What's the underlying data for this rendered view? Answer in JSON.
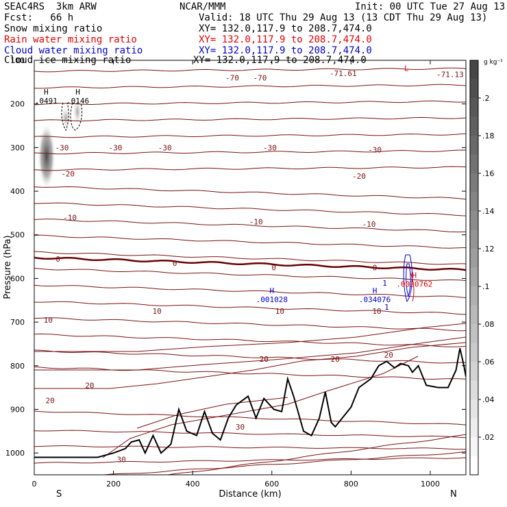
{
  "header": {
    "project": "SEAC4RS  3km ARW",
    "org": "NCAR/MMM",
    "init": "Init: 00 UTC Tue 27 Aug 13",
    "fcst": "Fcst:   66 h",
    "valid": "Valid: 18 UTC Thu 29 Aug 13 (13 CDT Thu 29 Aug 13)"
  },
  "fields": [
    {
      "name": "Snow mixing ratio",
      "xy": "XY= 132.0,117.9 to 208.7,474.0",
      "color": "#000000"
    },
    {
      "name": "Rain water mixing ratio",
      "xy": "XY= 132.0,117.9 to 208.7,474.0",
      "color": "#e00000"
    },
    {
      "name": "Cloud water mixing ratio",
      "xy": "XY= 132.0,117.9 to 208.7,474.0",
      "color": "#0000cc"
    },
    {
      "name": "Cloud ice mixing ratio",
      "xy": "XY= 132.0,117.9 to 208.7,474.0",
      "color": "#000000"
    }
  ],
  "colorbar": {
    "unit": "g kg⁻¹",
    "labels": [
      ".2",
      ".18",
      ".16",
      ".14",
      ".12",
      ".1",
      ".08",
      ".06",
      ".04",
      ".02"
    ],
    "values": [
      0.2,
      0.18,
      0.16,
      0.14,
      0.12,
      0.1,
      0.08,
      0.06,
      0.04,
      0.02
    ]
  },
  "chart_data": {
    "type": "contour_cross_section",
    "xlabel": "Distance (km)",
    "ylabel": "Pressure (hPa)",
    "xlim": [
      0,
      1090
    ],
    "ylim": [
      1050,
      100
    ],
    "xticks": [
      0,
      200,
      400,
      600,
      800,
      1000
    ],
    "yticks": [
      100,
      200,
      300,
      400,
      500,
      600,
      700,
      800,
      900,
      1000
    ],
    "x_end_labels": {
      "left": "S",
      "right": "N"
    },
    "temperature_contour_labels": [
      {
        "text": "-70",
        "x": 500,
        "p": 140
      },
      {
        "text": "-70",
        "x": 570,
        "p": 140
      },
      {
        "text": "-71.61",
        "x": 780,
        "p": 130
      },
      {
        "text": "-71.13",
        "x": 1050,
        "p": 132
      },
      {
        "text": "-30",
        "x": 70,
        "p": 300
      },
      {
        "text": "-30",
        "x": 205,
        "p": 300
      },
      {
        "text": "-30",
        "x": 330,
        "p": 300
      },
      {
        "text": "-30",
        "x": 595,
        "p": 300
      },
      {
        "text": "-30",
        "x": 860,
        "p": 305
      },
      {
        "text": "-20",
        "x": 85,
        "p": 360
      },
      {
        "text": "-20",
        "x": 820,
        "p": 365
      },
      {
        "text": "-10",
        "x": 90,
        "p": 460
      },
      {
        "text": "-10",
        "x": 560,
        "p": 470
      },
      {
        "text": "-10",
        "x": 845,
        "p": 475
      },
      {
        "text": "0",
        "x": 60,
        "p": 555
      },
      {
        "text": "0",
        "x": 355,
        "p": 565
      },
      {
        "text": "0",
        "x": 605,
        "p": 575
      },
      {
        "text": "0",
        "x": 860,
        "p": 575
      },
      {
        "text": "10",
        "x": 35,
        "p": 695
      },
      {
        "text": "10",
        "x": 310,
        "p": 675
      },
      {
        "text": "10",
        "x": 620,
        "p": 675
      },
      {
        "text": "10",
        "x": 865,
        "p": 675
      },
      {
        "text": "20",
        "x": 580,
        "p": 785
      },
      {
        "text": "20",
        "x": 760,
        "p": 785
      },
      {
        "text": "20",
        "x": 895,
        "p": 775
      },
      {
        "text": "20",
        "x": 140,
        "p": 845
      },
      {
        "text": "20",
        "x": 40,
        "p": 880
      },
      {
        "text": "30",
        "x": 520,
        "p": 940
      },
      {
        "text": "30",
        "x": 220,
        "p": 1015
      }
    ],
    "extrema": [
      {
        "label": "H",
        "value": ".0491",
        "x": 30,
        "p": 185,
        "color": "#000000"
      },
      {
        "label": "H",
        "value": ".0146",
        "x": 110,
        "p": 185,
        "color": "#000000"
      },
      {
        "label": "H",
        "value": ".001028",
        "x": 600,
        "p": 640,
        "color": "#0000cc"
      },
      {
        "label": "H",
        "value": ".034076",
        "x": 860,
        "p": 640,
        "color": "#0000cc"
      },
      {
        "label": "H",
        "value": ".0020762",
        "x": 960,
        "p": 605,
        "color": "#e00000"
      }
    ],
    "extra_labels": [
      {
        "text": "1",
        "x": 885,
        "p": 610,
        "color": "#0000cc"
      },
      {
        "text": "1",
        "x": 890,
        "p": 665,
        "color": "#0000cc"
      },
      {
        "text": "L",
        "x": 940,
        "p": 118,
        "color": "#e00000"
      }
    ],
    "terrain_pressure": [
      [
        0,
        1010
      ],
      [
        160,
        1010
      ],
      [
        200,
        1000
      ],
      [
        230,
        990
      ],
      [
        245,
        975
      ],
      [
        265,
        970
      ],
      [
        280,
        1000
      ],
      [
        300,
        960
      ],
      [
        320,
        1000
      ],
      [
        345,
        980
      ],
      [
        365,
        900
      ],
      [
        385,
        950
      ],
      [
        410,
        960
      ],
      [
        430,
        905
      ],
      [
        450,
        955
      ],
      [
        470,
        970
      ],
      [
        490,
        920
      ],
      [
        510,
        890
      ],
      [
        540,
        870
      ],
      [
        560,
        920
      ],
      [
        580,
        875
      ],
      [
        605,
        900
      ],
      [
        625,
        905
      ],
      [
        640,
        830
      ],
      [
        655,
        870
      ],
      [
        680,
        950
      ],
      [
        700,
        960
      ],
      [
        720,
        920
      ],
      [
        735,
        860
      ],
      [
        750,
        930
      ],
      [
        760,
        940
      ],
      [
        800,
        895
      ],
      [
        820,
        850
      ],
      [
        850,
        830
      ],
      [
        870,
        800
      ],
      [
        890,
        790
      ],
      [
        910,
        805
      ],
      [
        925,
        795
      ],
      [
        945,
        800
      ],
      [
        955,
        815
      ],
      [
        970,
        800
      ],
      [
        990,
        845
      ],
      [
        1020,
        850
      ],
      [
        1045,
        850
      ],
      [
        1065,
        810
      ],
      [
        1075,
        760
      ],
      [
        1085,
        800
      ],
      [
        1090,
        825
      ]
    ]
  }
}
